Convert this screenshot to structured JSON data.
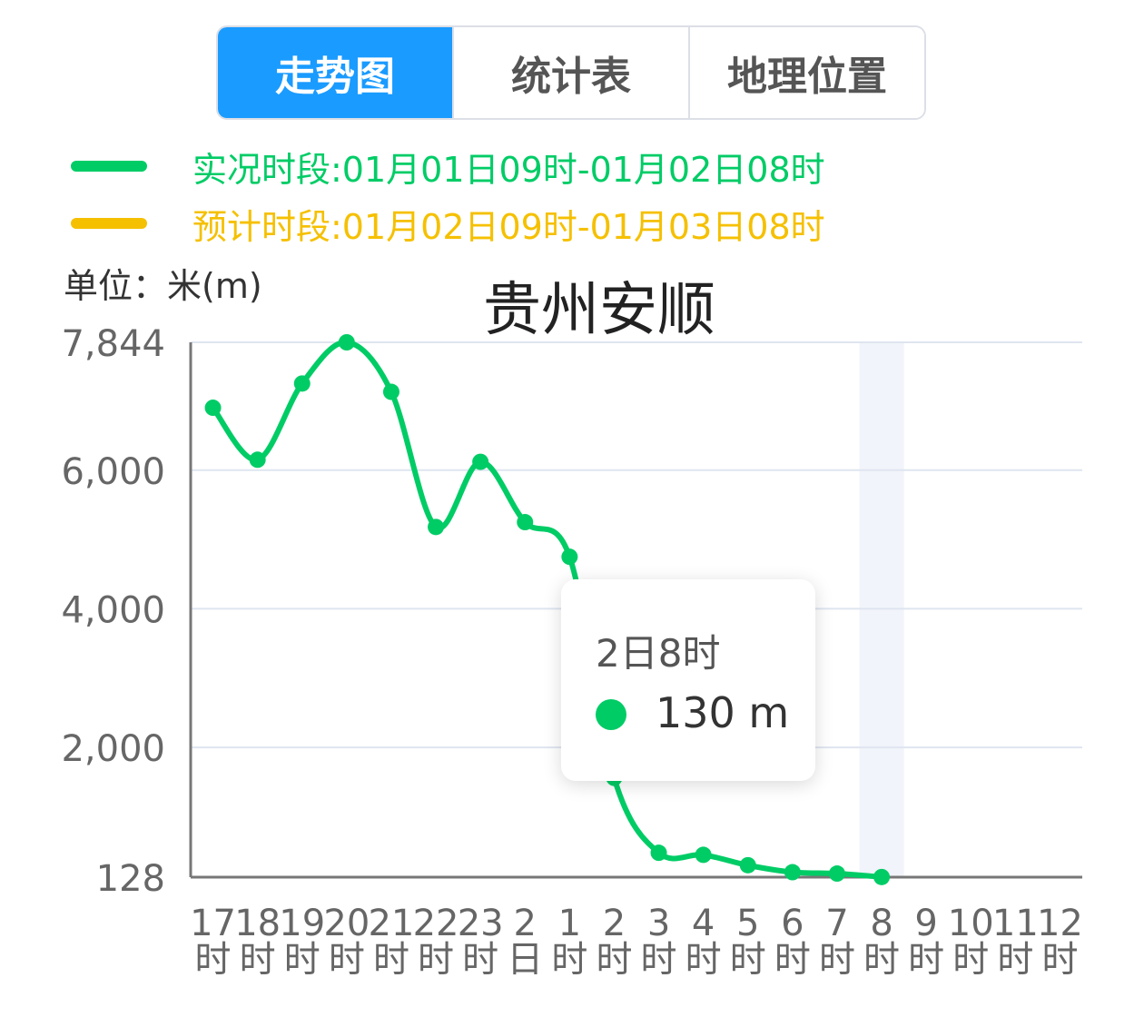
{
  "tabs": [
    {
      "label": "走势图",
      "active": true
    },
    {
      "label": "统计表",
      "active": false
    },
    {
      "label": "地理位置",
      "active": false
    }
  ],
  "legend": [
    {
      "text": "实况时段:01月01日09时-01月02日08时",
      "color": "#00cc66"
    },
    {
      "text": "预计时段:01月02日09时-01月03日08时",
      "color": "#f5c000"
    }
  ],
  "unit_label": "单位：米(m)",
  "tooltip": {
    "time": "2日8时",
    "value": "130 m",
    "dot_color": "#00cc66"
  },
  "chart_data": {
    "type": "line",
    "title": "贵州安顺",
    "ylabel": "单位：米(m)",
    "y_ticks": [
      {
        "label": "7,844",
        "value": 7844
      },
      {
        "label": "6,000",
        "value": 6000
      },
      {
        "label": "4,000",
        "value": 4000
      },
      {
        "label": "2,000",
        "value": 2000
      },
      {
        "label": "128",
        "value": 128
      }
    ],
    "ylim": [
      128,
      7844
    ],
    "categories": [
      [
        "17",
        "时"
      ],
      [
        "18",
        "时"
      ],
      [
        "19",
        "时"
      ],
      [
        "20",
        "时"
      ],
      [
        "21",
        "时"
      ],
      [
        "22",
        "时"
      ],
      [
        "23",
        "时"
      ],
      [
        "2",
        "日"
      ],
      [
        "1",
        "时"
      ],
      [
        "2",
        "时"
      ],
      [
        "3",
        "时"
      ],
      [
        "4",
        "时"
      ],
      [
        "5",
        "时"
      ],
      [
        "6",
        "时"
      ],
      [
        "7",
        "时"
      ],
      [
        "8",
        "时"
      ],
      [
        "9",
        "时"
      ],
      [
        "10",
        "时"
      ],
      [
        "11",
        "时"
      ],
      [
        "12",
        "时"
      ]
    ],
    "series": [
      {
        "color": "#00cc66",
        "values": [
          6900,
          6150,
          7250,
          7844,
          7130,
          5180,
          6120,
          5250,
          4750,
          1560,
          480,
          450,
          300,
          200,
          180,
          130,
          null,
          null,
          null,
          null
        ]
      }
    ],
    "highlight_index": 15,
    "grid": true
  }
}
